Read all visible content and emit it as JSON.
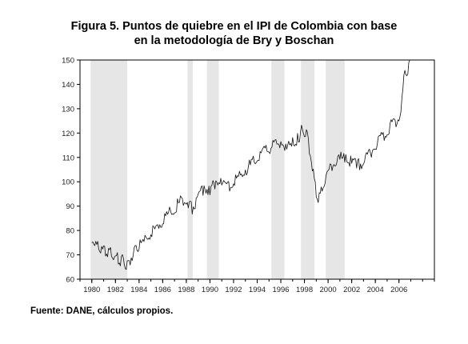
{
  "chart_data": {
    "type": "line",
    "title_line1": "Figura 5. Puntos de quiebre en el IPI de Colombia con base",
    "title_line2": "en la metodología de Bry y Boschan",
    "xlim": [
      1979,
      2009
    ],
    "ylim": [
      60,
      150
    ],
    "y_ticks": [
      60,
      70,
      80,
      90,
      100,
      110,
      120,
      130,
      140,
      150
    ],
    "x_ticks": [
      "1980",
      "1982",
      "1984",
      "1986",
      "1988",
      "1990",
      "1992",
      "1994",
      "1996",
      "1998",
      "2000",
      "2002",
      "2004",
      "2006"
    ],
    "shaded_periods": [
      [
        1979.9,
        1983.0
      ],
      [
        1988.1,
        1988.55
      ],
      [
        1989.75,
        1990.75
      ],
      [
        1995.2,
        1996.3
      ],
      [
        1997.7,
        1998.85
      ],
      [
        1999.8,
        2001.4
      ]
    ],
    "series": [
      {
        "x": [
          1980.0,
          1980.25,
          1980.5,
          1980.75,
          1981.0,
          1981.25,
          1981.5,
          1981.75,
          1982.0,
          1982.25,
          1982.5,
          1982.75,
          1983.0,
          1983.25,
          1983.5,
          1983.75,
          1984.0,
          1984.5,
          1985.0,
          1985.5,
          1986.0,
          1986.5,
          1987.0,
          1987.5,
          1988.0,
          1988.25,
          1988.5,
          1989.0,
          1989.5,
          1990.0,
          1990.5,
          1991.0,
          1991.5,
          1992.0,
          1992.5,
          1993.0,
          1993.5,
          1994.0,
          1994.5,
          1995.0,
          1995.5,
          1996.0,
          1996.5,
          1997.0,
          1997.5,
          1997.75,
          1998.0,
          1998.25,
          1998.5,
          1998.75,
          1999.0,
          1999.25,
          1999.5,
          2000.0,
          2000.5,
          2001.0,
          2001.5,
          2002.0,
          2002.5,
          2003.0,
          2003.5,
          2004.0,
          2004.5,
          2005.0,
          2005.5,
          2006.0,
          2006.25,
          2006.5,
          2006.75,
          2007.0
        ],
        "values": [
          75,
          76,
          73,
          72,
          72,
          71,
          71,
          70,
          69,
          68,
          68,
          67,
          65,
          68,
          71,
          72,
          74,
          76,
          79,
          81,
          84,
          87,
          89,
          92,
          93,
          90,
          89,
          94,
          97,
          97,
          100,
          100,
          98,
          100,
          102,
          105,
          107,
          110,
          112,
          114,
          115,
          116,
          114,
          116,
          118,
          121,
          121,
          118,
          112,
          103,
          96,
          93,
          98,
          104,
          108,
          110,
          109,
          108,
          107,
          108,
          111,
          115,
          118,
          121,
          124,
          126,
          133,
          146,
          145,
          150
        ]
      }
    ],
    "source": "Fuente: DANE, cálculos propios."
  }
}
